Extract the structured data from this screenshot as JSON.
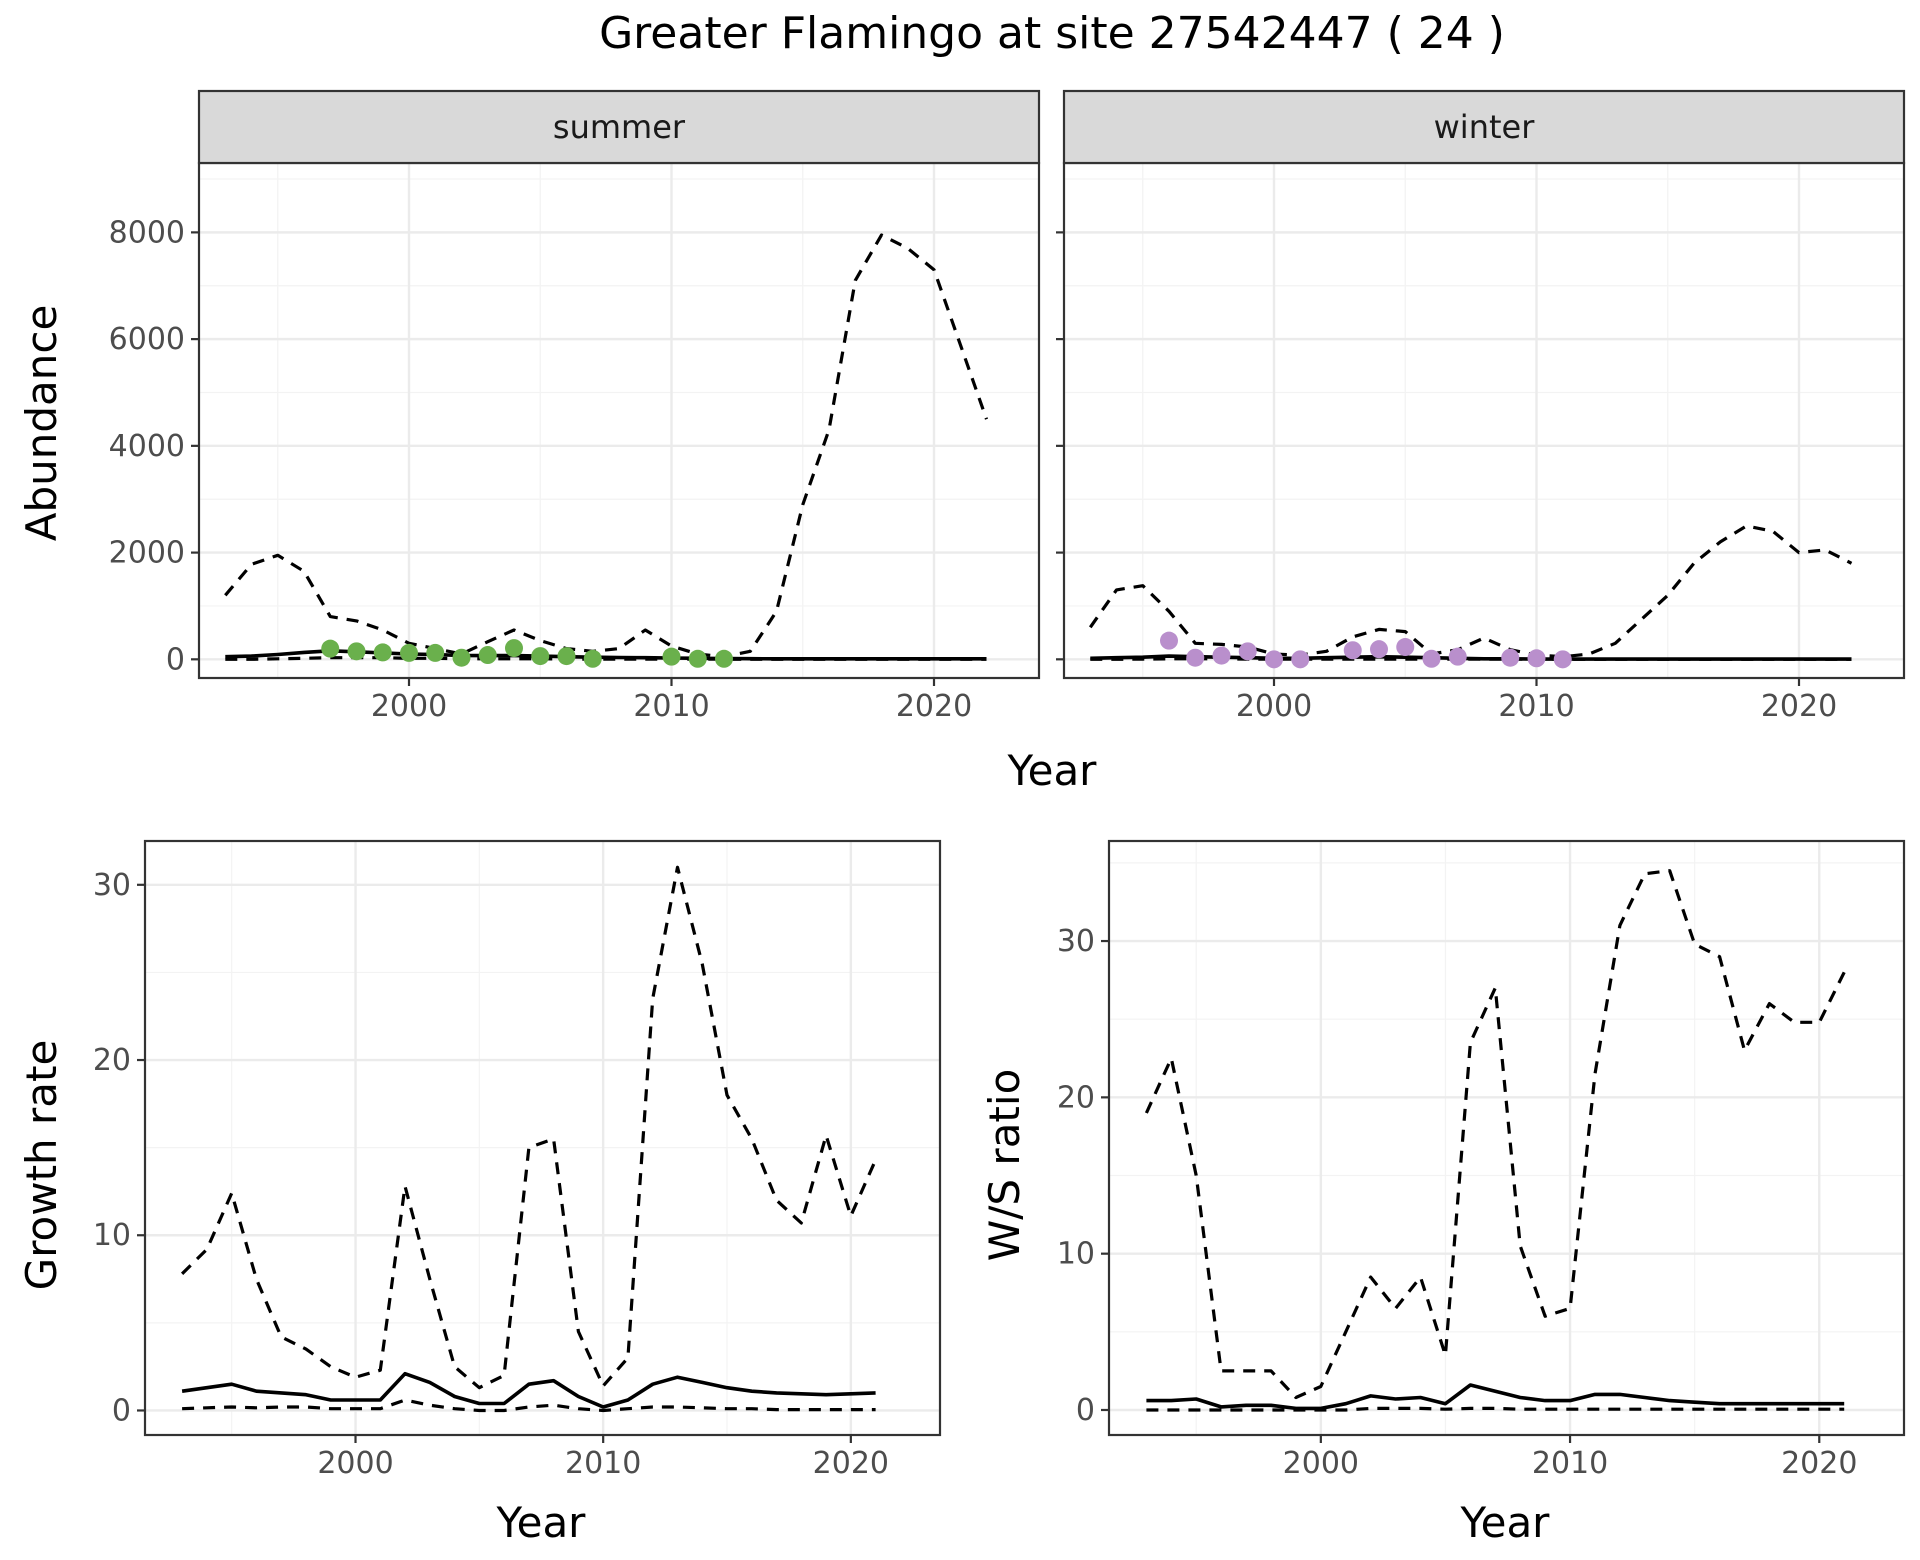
{
  "title": "Greater Flamingo at site 27542447 ( 24 )",
  "top_panels": {
    "xlabel": "Year",
    "ylabel": "Abundance"
  },
  "chart_data": [
    {
      "type": "line",
      "facet": "summer",
      "xlabel": "Year",
      "ylabel": "Abundance",
      "xlim": [
        1992,
        2024
      ],
      "ylim": [
        -350,
        9300
      ],
      "xticks": [
        2000,
        2010,
        2020
      ],
      "yticks": [
        0,
        2000,
        4000,
        6000,
        8000
      ],
      "ytick_labels": [
        "0",
        "2000",
        "4000",
        "6000",
        "8000"
      ],
      "grid": true,
      "series": [
        {
          "style": "dashed",
          "x": [
            1993,
            1994,
            1995,
            1996,
            1997,
            1998,
            1999,
            2000,
            2001,
            2002,
            2003,
            2004,
            2005,
            2006,
            2007,
            2008,
            2009,
            2010,
            2011,
            2012,
            2013,
            2014,
            2015,
            2016,
            2017,
            2018,
            2019,
            2020,
            2021,
            2022
          ],
          "y": [
            1200,
            1780,
            1950,
            1650,
            800,
            720,
            550,
            300,
            200,
            100,
            330,
            550,
            350,
            200,
            150,
            200,
            550,
            250,
            100,
            50,
            150,
            900,
            2900,
            4300,
            7100,
            7950,
            7700,
            7300,
            5900,
            4500
          ]
        },
        {
          "style": "solid",
          "x": [
            1993,
            1994,
            1995,
            1996,
            1997,
            1998,
            1999,
            2000,
            2001,
            2002,
            2003,
            2004,
            2005,
            2006,
            2007,
            2008,
            2009,
            2010,
            2011,
            2012,
            2013,
            2014,
            2015,
            2016,
            2017,
            2018,
            2019,
            2020,
            2021,
            2022
          ],
          "y": [
            50,
            60,
            90,
            130,
            160,
            140,
            120,
            100,
            90,
            70,
            70,
            70,
            60,
            50,
            40,
            35,
            30,
            25,
            20,
            15,
            12,
            10,
            10,
            10,
            10,
            10,
            10,
            10,
            10,
            10
          ]
        },
        {
          "style": "dashed",
          "x": [
            1993,
            1994,
            1995,
            1996,
            1997,
            1998,
            1999,
            2000,
            2001,
            2002,
            2003,
            2004,
            2005,
            2006,
            2007,
            2008,
            2009,
            2010,
            2011,
            2012,
            2013,
            2014,
            2015,
            2016,
            2017,
            2018,
            2019,
            2020,
            2021,
            2022
          ],
          "y": [
            0,
            0,
            10,
            20,
            30,
            30,
            30,
            20,
            20,
            10,
            10,
            10,
            10,
            5,
            5,
            5,
            5,
            5,
            3,
            2,
            1,
            1,
            1,
            1,
            1,
            1,
            1,
            1,
            1,
            1
          ]
        }
      ],
      "points": {
        "color": "#6ab04c",
        "x": [
          1997,
          1998,
          1999,
          2000,
          2001,
          2002,
          2003,
          2004,
          2005,
          2006,
          2007,
          2010,
          2011,
          2012
        ],
        "y": [
          200,
          150,
          130,
          120,
          120,
          30,
          80,
          210,
          60,
          60,
          10,
          50,
          10,
          10
        ]
      }
    },
    {
      "type": "line",
      "facet": "winter",
      "xlabel": "Year",
      "ylabel": "Abundance",
      "xlim": [
        1992,
        2024
      ],
      "ylim": [
        -350,
        9300
      ],
      "xticks": [
        2000,
        2010,
        2020
      ],
      "yticks": [
        0,
        2000,
        4000,
        6000,
        8000
      ],
      "grid": true,
      "series": [
        {
          "style": "dashed",
          "x": [
            1993,
            1994,
            1995,
            1996,
            1997,
            1998,
            1999,
            2000,
            2001,
            2002,
            2003,
            2004,
            2005,
            2006,
            2007,
            2008,
            2009,
            2010,
            2011,
            2012,
            2013,
            2014,
            2015,
            2016,
            2017,
            2018,
            2019,
            2020,
            2021,
            2022
          ],
          "y": [
            600,
            1300,
            1380,
            900,
            300,
            280,
            230,
            100,
            80,
            150,
            420,
            560,
            520,
            100,
            180,
            400,
            180,
            80,
            50,
            100,
            300,
            750,
            1200,
            1800,
            2200,
            2500,
            2400,
            2000,
            2050,
            1800
          ]
        },
        {
          "style": "solid",
          "x": [
            1993,
            1994,
            1995,
            1996,
            1997,
            1998,
            1999,
            2000,
            2001,
            2002,
            2003,
            2004,
            2005,
            2006,
            2007,
            2008,
            2009,
            2010,
            2011,
            2012,
            2013,
            2014,
            2015,
            2016,
            2017,
            2018,
            2019,
            2020,
            2021,
            2022
          ],
          "y": [
            20,
            30,
            40,
            60,
            50,
            40,
            30,
            20,
            20,
            30,
            40,
            50,
            40,
            30,
            20,
            10,
            10,
            5,
            5,
            5,
            5,
            5,
            5,
            5,
            5,
            5,
            5,
            5,
            5,
            5
          ]
        },
        {
          "style": "dashed",
          "x": [
            1993,
            1994,
            1995,
            1996,
            1997,
            1998,
            1999,
            2000,
            2001,
            2002,
            2003,
            2004,
            2005,
            2006,
            2007,
            2008,
            2009,
            2010,
            2011,
            2012,
            2013,
            2014,
            2015,
            2016,
            2017,
            2018,
            2019,
            2020,
            2021,
            2022
          ],
          "y": [
            0,
            0,
            5,
            10,
            10,
            10,
            5,
            5,
            5,
            5,
            5,
            5,
            5,
            5,
            5,
            5,
            5,
            2,
            2,
            1,
            1,
            1,
            1,
            1,
            1,
            1,
            1,
            1,
            1,
            1
          ]
        }
      ],
      "points": {
        "color": "#b98fcc",
        "x": [
          1996,
          1997,
          1998,
          1999,
          2000,
          2001,
          2003,
          2004,
          2005,
          2006,
          2007,
          2009,
          2010,
          2011
        ],
        "y": [
          350,
          30,
          70,
          150,
          0,
          0,
          170,
          190,
          230,
          10,
          50,
          30,
          20,
          0
        ]
      }
    },
    {
      "type": "line",
      "xlabel": "Year",
      "ylabel": "Growth rate",
      "xlim": [
        1991.5,
        2023.6
      ],
      "ylim": [
        -1.4,
        32.5
      ],
      "xticks": [
        2000,
        2010,
        2020
      ],
      "yticks": [
        0,
        10,
        20,
        30
      ],
      "grid": true,
      "series": [
        {
          "style": "dashed",
          "x": [
            1993,
            1994,
            1995,
            1996,
            1997,
            1998,
            1999,
            2000,
            2001,
            2002,
            2003,
            2004,
            2005,
            2006,
            2007,
            2008,
            2009,
            2010,
            2011,
            2012,
            2013,
            2014,
            2015,
            2016,
            2017,
            2018,
            2019,
            2020,
            2021
          ],
          "y": [
            7.8,
            9.2,
            12.4,
            7.5,
            4.2,
            3.5,
            2.5,
            1.9,
            2.3,
            12.8,
            7.5,
            2.5,
            1.3,
            2,
            15,
            15.5,
            4.5,
            1.4,
            3,
            23.5,
            31,
            25.5,
            18,
            15.5,
            12,
            10.7,
            15.7,
            11.1,
            14.3
          ]
        },
        {
          "style": "solid",
          "x": [
            1993,
            1994,
            1995,
            1996,
            1997,
            1998,
            1999,
            2000,
            2001,
            2002,
            2003,
            2004,
            2005,
            2006,
            2007,
            2008,
            2009,
            2010,
            2011,
            2012,
            2013,
            2014,
            2015,
            2016,
            2017,
            2018,
            2019,
            2020,
            2021
          ],
          "y": [
            1.1,
            1.3,
            1.5,
            1.1,
            1,
            0.9,
            0.6,
            0.6,
            0.6,
            2.1,
            1.6,
            0.8,
            0.4,
            0.4,
            1.5,
            1.7,
            0.8,
            0.2,
            0.6,
            1.5,
            1.9,
            1.6,
            1.3,
            1.1,
            1,
            0.95,
            0.9,
            0.95,
            1
          ]
        },
        {
          "style": "dashed",
          "x": [
            1993,
            1994,
            1995,
            1996,
            1997,
            1998,
            1999,
            2000,
            2001,
            2002,
            2003,
            2004,
            2005,
            2006,
            2007,
            2008,
            2009,
            2010,
            2011,
            2012,
            2013,
            2014,
            2015,
            2016,
            2017,
            2018,
            2019,
            2020,
            2021
          ],
          "y": [
            0.1,
            0.15,
            0.2,
            0.15,
            0.2,
            0.2,
            0.1,
            0.1,
            0.1,
            0.6,
            0.3,
            0.1,
            0,
            0,
            0.2,
            0.3,
            0.1,
            0,
            0.1,
            0.2,
            0.2,
            0.15,
            0.1,
            0.1,
            0.05,
            0.05,
            0.05,
            0.05,
            0.05
          ]
        }
      ]
    },
    {
      "type": "line",
      "xlabel": "Year",
      "ylabel": "W/S ratio",
      "xlim": [
        1991.5,
        2023.4
      ],
      "ylim": [
        -1.6,
        36.4
      ],
      "xticks": [
        2000,
        2010,
        2020
      ],
      "yticks": [
        0,
        10,
        20,
        30
      ],
      "grid": true,
      "series": [
        {
          "style": "dashed",
          "x": [
            1993,
            1994,
            1995,
            1996,
            1997,
            1998,
            1999,
            2000,
            2001,
            2002,
            2003,
            2004,
            2005,
            2006,
            2007,
            2008,
            2009,
            2010,
            2011,
            2012,
            2013,
            2014,
            2015,
            2016,
            2017,
            2018,
            2019,
            2020,
            2021
          ],
          "y": [
            19,
            22.5,
            15,
            2.5,
            2.5,
            2.5,
            0.8,
            1.5,
            5,
            8.5,
            6.5,
            8.5,
            3.5,
            23.5,
            27,
            10.5,
            6,
            6.5,
            21.5,
            31,
            34.3,
            34.5,
            29.8,
            29,
            23,
            26,
            24.8,
            24.8,
            28
          ]
        },
        {
          "style": "solid",
          "x": [
            1993,
            1994,
            1995,
            1996,
            1997,
            1998,
            1999,
            2000,
            2001,
            2002,
            2003,
            2004,
            2005,
            2006,
            2007,
            2008,
            2009,
            2010,
            2011,
            2012,
            2013,
            2014,
            2015,
            2016,
            2017,
            2018,
            2019,
            2020,
            2021
          ],
          "y": [
            0.6,
            0.6,
            0.7,
            0.2,
            0.3,
            0.3,
            0.1,
            0.1,
            0.4,
            0.9,
            0.7,
            0.8,
            0.4,
            1.6,
            1.2,
            0.8,
            0.6,
            0.6,
            1,
            1,
            0.8,
            0.6,
            0.5,
            0.4,
            0.4,
            0.4,
            0.4,
            0.4,
            0.4
          ]
        },
        {
          "style": "dashed",
          "x": [
            1993,
            1994,
            1995,
            1996,
            1997,
            1998,
            1999,
            2000,
            2001,
            2002,
            2003,
            2004,
            2005,
            2006,
            2007,
            2008,
            2009,
            2010,
            2011,
            2012,
            2013,
            2014,
            2015,
            2016,
            2017,
            2018,
            2019,
            2020,
            2021
          ],
          "y": [
            0,
            0,
            0,
            0,
            0,
            0,
            0,
            0,
            0,
            0.1,
            0.1,
            0.1,
            0.05,
            0.1,
            0.1,
            0.05,
            0.05,
            0.05,
            0.05,
            0.05,
            0.05,
            0.05,
            0.05,
            0.05,
            0.05,
            0.05,
            0.05,
            0.05,
            0.05
          ]
        }
      ]
    }
  ]
}
